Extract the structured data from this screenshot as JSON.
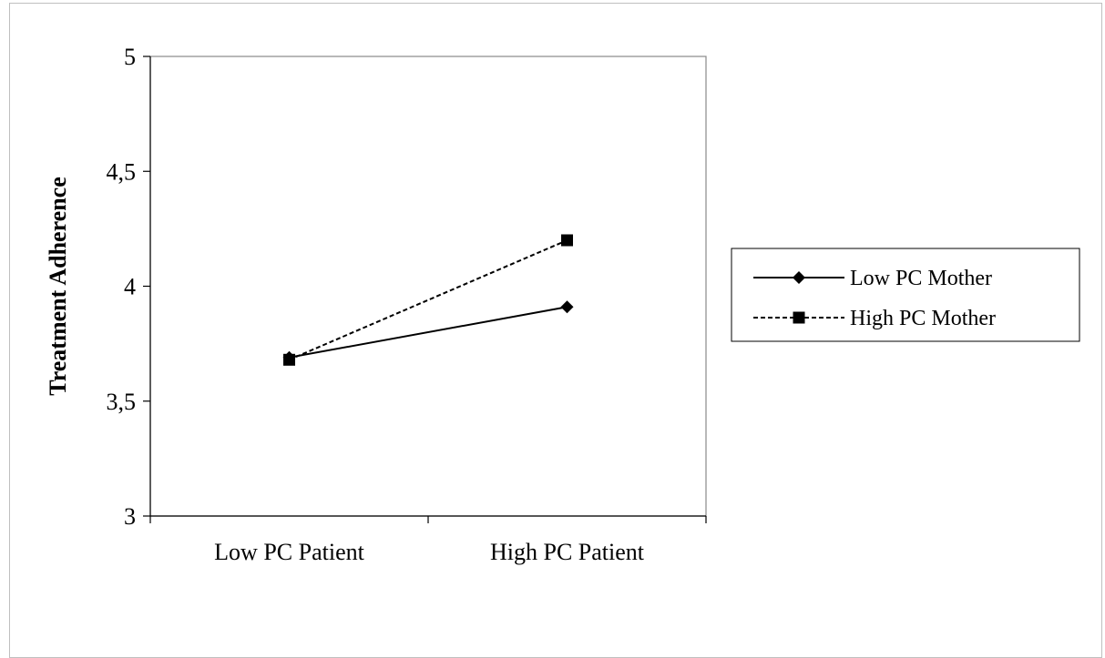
{
  "chart_data": {
    "type": "line",
    "categories": [
      "Low PC Patient",
      "High PC Patient"
    ],
    "series": [
      {
        "name": "Low PC Mother",
        "values": [
          3.69,
          3.91
        ],
        "marker": "diamond",
        "dash": "solid",
        "color": "#000000"
      },
      {
        "name": "High PC Mother",
        "values": [
          3.68,
          4.2
        ],
        "marker": "square",
        "dash": "dashed",
        "color": "#000000"
      }
    ],
    "xlabel": "",
    "ylabel": "Treatment Adherence",
    "ylim": [
      3,
      5
    ],
    "yticks": [
      3,
      3.5,
      4,
      4.5,
      5
    ],
    "ytick_labels": [
      "3",
      "3,5",
      "4",
      "4,5",
      "5"
    ],
    "grid": false,
    "legend": "right"
  }
}
